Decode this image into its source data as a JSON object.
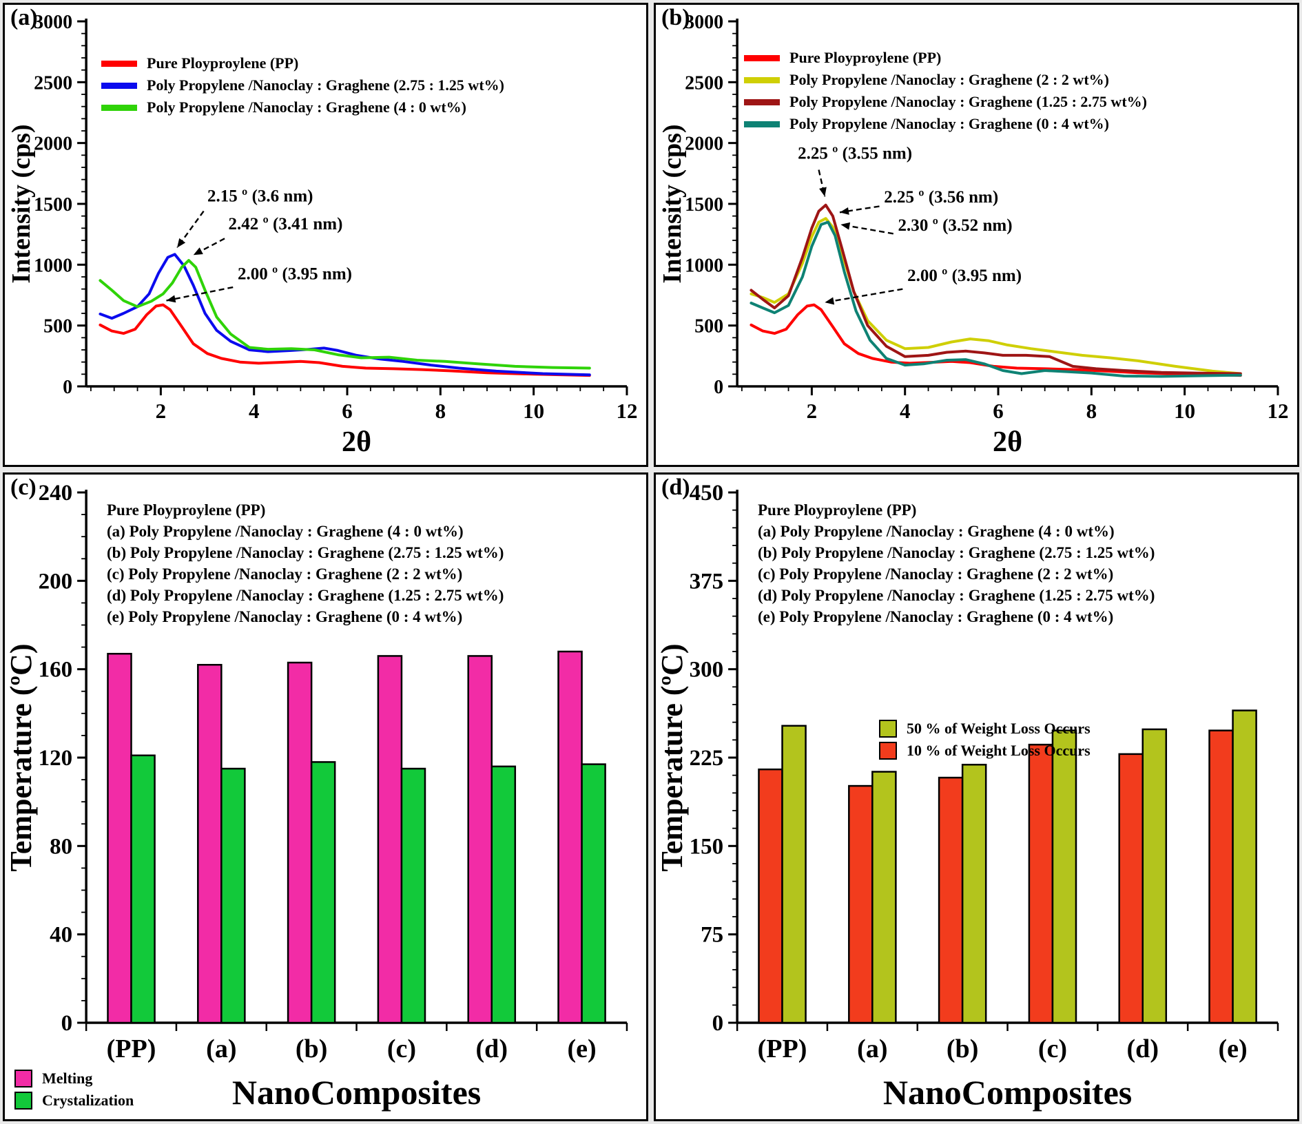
{
  "figure": {
    "panels": [
      {
        "label": "(a)"
      },
      {
        "label": "(b)"
      },
      {
        "label": "(c)"
      },
      {
        "label": "(d)"
      }
    ]
  },
  "chart_data": [
    {
      "id": "a",
      "type": "line",
      "xlabel": "2θ",
      "ylabel": "Intensity (cps)",
      "xlim": [
        0.4,
        12
      ],
      "ylim": [
        0,
        3000
      ],
      "xticks": [
        2,
        4,
        6,
        8,
        10,
        12
      ],
      "xminor_step": 0.5,
      "ytick_step": 500,
      "yminor_step": 100,
      "legend_position": "top-left-inside",
      "series": [
        {
          "name": "Pure Ployproylene (PP)",
          "color": "#ff0000",
          "x": [
            0.7,
            0.95,
            1.2,
            1.45,
            1.7,
            1.9,
            2.05,
            2.2,
            2.45,
            2.7,
            3.0,
            3.3,
            3.7,
            4.1,
            4.6,
            5.0,
            5.4,
            5.9,
            6.4,
            7.0,
            7.6,
            8.2,
            9.0,
            10.0,
            11.2
          ],
          "y": [
            505,
            455,
            435,
            470,
            590,
            660,
            670,
            630,
            490,
            350,
            270,
            230,
            200,
            190,
            198,
            205,
            195,
            165,
            150,
            145,
            138,
            128,
            112,
            100,
            90
          ]
        },
        {
          "name": "Poly Propylene /Nanoclay : Graghene (2.75 : 1.25 wt%)",
          "color": "#0b0bee",
          "x": [
            0.7,
            0.95,
            1.2,
            1.5,
            1.75,
            1.95,
            2.15,
            2.3,
            2.5,
            2.7,
            2.95,
            3.2,
            3.5,
            3.9,
            4.3,
            4.8,
            5.2,
            5.5,
            5.8,
            6.2,
            6.7,
            7.2,
            7.8,
            8.4,
            9.2,
            10.2,
            11.2
          ],
          "y": [
            595,
            560,
            600,
            655,
            760,
            930,
            1060,
            1085,
            990,
            830,
            600,
            460,
            370,
            300,
            285,
            295,
            305,
            315,
            295,
            255,
            225,
            205,
            175,
            150,
            125,
            105,
            95
          ]
        },
        {
          "name": "Poly Propylene /Nanoclay : Graghene (4 : 0 wt%)",
          "color": "#2fd308",
          "x": [
            0.7,
            0.95,
            1.2,
            1.5,
            1.8,
            2.05,
            2.25,
            2.45,
            2.6,
            2.75,
            2.95,
            3.2,
            3.5,
            3.9,
            4.3,
            4.8,
            5.3,
            5.8,
            6.3,
            6.9,
            7.5,
            8.1,
            8.8,
            9.6,
            10.4,
            11.2
          ],
          "y": [
            870,
            790,
            705,
            655,
            700,
            760,
            850,
            980,
            1035,
            980,
            790,
            570,
            430,
            320,
            305,
            310,
            300,
            260,
            235,
            240,
            215,
            205,
            185,
            165,
            155,
            150
          ]
        }
      ],
      "annotations": [
        {
          "text": "2.15 º (3.6 nm)",
          "tx": 3.0,
          "ty": 1520,
          "line": [
            2.92,
            1440,
            2.35,
            1140
          ]
        },
        {
          "text": "2.42 º (3.41 nm)",
          "tx": 3.45,
          "ty": 1290,
          "line": [
            3.37,
            1215,
            2.7,
            1080
          ]
        },
        {
          "text": "2.00 º (3.95 nm)",
          "tx": 3.65,
          "ty": 880,
          "line": [
            3.55,
            815,
            2.12,
            705
          ]
        }
      ]
    },
    {
      "id": "b",
      "type": "line",
      "xlabel": "2θ",
      "ylabel": "Intensity (cps)",
      "xlim": [
        0.4,
        12
      ],
      "ylim": [
        0,
        3000
      ],
      "xticks": [
        2,
        4,
        6,
        8,
        10,
        12
      ],
      "xminor_step": 0.5,
      "ytick_step": 500,
      "yminor_step": 100,
      "legend_position": "top-left-inside",
      "series": [
        {
          "name": "Pure Ployproylene (PP)",
          "color": "#ff0000",
          "x": [
            0.7,
            0.95,
            1.2,
            1.45,
            1.7,
            1.9,
            2.05,
            2.2,
            2.45,
            2.7,
            3.0,
            3.3,
            3.7,
            4.1,
            4.6,
            5.0,
            5.4,
            5.9,
            6.4,
            7.0,
            7.6,
            8.2,
            9.0,
            10.0,
            11.2
          ],
          "y": [
            505,
            455,
            435,
            470,
            590,
            660,
            670,
            630,
            490,
            350,
            270,
            230,
            200,
            190,
            198,
            205,
            195,
            165,
            150,
            145,
            138,
            128,
            112,
            100,
            90
          ]
        },
        {
          "name": "Poly Propylene /Nanoclay : Graghene (2 : 2 wt%)",
          "color": "#cfcf05",
          "x": [
            0.7,
            0.95,
            1.2,
            1.5,
            1.8,
            2.0,
            2.15,
            2.3,
            2.45,
            2.65,
            2.9,
            3.2,
            3.6,
            4.0,
            4.5,
            5.0,
            5.4,
            5.8,
            6.2,
            6.7,
            7.2,
            7.8,
            8.4,
            9.0,
            9.8,
            10.6,
            11.2
          ],
          "y": [
            760,
            730,
            690,
            760,
            1010,
            1230,
            1350,
            1380,
            1310,
            1090,
            780,
            540,
            380,
            310,
            320,
            365,
            390,
            375,
            340,
            310,
            285,
            255,
            235,
            210,
            165,
            125,
            105
          ]
        },
        {
          "name": "Poly Propylene /Nanoclay : Graghene (1.25 : 2.75 wt%)",
          "color": "#9e1515",
          "x": [
            0.7,
            0.95,
            1.2,
            1.5,
            1.8,
            2.0,
            2.15,
            2.3,
            2.45,
            2.65,
            2.9,
            3.2,
            3.6,
            4.0,
            4.5,
            4.9,
            5.3,
            5.7,
            6.1,
            6.6,
            7.1,
            7.6,
            8.1,
            8.7,
            9.5,
            10.4,
            11.2
          ],
          "y": [
            790,
            715,
            645,
            745,
            1060,
            1300,
            1440,
            1490,
            1400,
            1130,
            780,
            500,
            330,
            245,
            255,
            280,
            290,
            275,
            255,
            255,
            245,
            165,
            145,
            130,
            115,
            108,
            105
          ]
        },
        {
          "name": "Poly Propylene /Nanoclay : Graghene (0 : 4 wt%)",
          "color": "#0e8274",
          "x": [
            0.7,
            0.95,
            1.2,
            1.5,
            1.8,
            2.0,
            2.2,
            2.35,
            2.5,
            2.7,
            2.95,
            3.25,
            3.6,
            4.0,
            4.4,
            4.9,
            5.3,
            5.7,
            6.1,
            6.5,
            7.0,
            7.5,
            8.0,
            8.7,
            9.5,
            10.4,
            11.2
          ],
          "y": [
            685,
            645,
            605,
            665,
            900,
            1150,
            1330,
            1350,
            1240,
            940,
            620,
            380,
            230,
            175,
            185,
            215,
            220,
            185,
            130,
            105,
            130,
            120,
            110,
            85,
            82,
            88,
            92
          ]
        }
      ],
      "annotations": [
        {
          "text": "2.25 º (3.55 nm)",
          "tx": 1.7,
          "ty": 1870,
          "line": [
            2.15,
            1780,
            2.28,
            1560
          ]
        },
        {
          "text": "2.25 º (3.56 nm)",
          "tx": 3.55,
          "ty": 1510,
          "line": [
            3.45,
            1480,
            2.6,
            1430
          ]
        },
        {
          "text": "2.30 º (3.52 nm)",
          "tx": 3.85,
          "ty": 1280,
          "line": [
            3.75,
            1255,
            2.62,
            1330
          ]
        },
        {
          "text": "2.00 º (3.95 nm)",
          "tx": 4.05,
          "ty": 865,
          "line": [
            3.95,
            800,
            2.28,
            690
          ]
        }
      ]
    },
    {
      "id": "c",
      "type": "bar",
      "xlabel": "NanoComposites",
      "ylabel": "Temperature (ºC)",
      "ylim": [
        0,
        240
      ],
      "ytick_step": 40,
      "yminor_step": 10,
      "categories": [
        "(PP)",
        "(a)",
        "(b)",
        "(c)",
        "(d)",
        "(e)"
      ],
      "series": [
        {
          "name": "Melting",
          "color": "#f22ca6",
          "values": [
            167,
            162,
            163,
            166,
            166,
            168
          ]
        },
        {
          "name": "Crystalization",
          "color": "#12c93a",
          "values": [
            121,
            115,
            118,
            115,
            116,
            117
          ]
        }
      ],
      "legend": [
        {
          "label": "Melting",
          "color": "#f22ca6"
        },
        {
          "label": "Crystalization",
          "color": "#12c93a"
        }
      ],
      "note_lines": [
        "Pure Ployproylene (PP)",
        "(a) Poly Propylene /Nanoclay : Graghene (4 : 0 wt%)",
        "(b) Poly Propylene /Nanoclay : Graghene (2.75 : 1.25 wt%)",
        "(c) Poly Propylene /Nanoclay : Graghene (2 : 2 wt%)",
        "(d) Poly Propylene /Nanoclay : Graghene (1.25 : 2.75 wt%)",
        "(e) Poly Propylene /Nanoclay : Graghene (0 : 4 wt%)"
      ]
    },
    {
      "id": "d",
      "type": "bar",
      "xlabel": "NanoComposites",
      "ylabel": "Temperature (ºC)",
      "ylim": [
        0,
        450
      ],
      "ytick_step": 75,
      "yminor_step": 15,
      "categories": [
        "(PP)",
        "(a)",
        "(b)",
        "(c)",
        "(d)",
        "(e)"
      ],
      "series": [
        {
          "name": "10 % of Weight Loss Occurs",
          "color": "#f23c1d",
          "values": [
            215,
            201,
            208,
            236,
            228,
            248
          ]
        },
        {
          "name": "50 % of Weight Loss Occurs",
          "color": "#b3c41d",
          "values": [
            252,
            213,
            219,
            248,
            249,
            265
          ]
        }
      ],
      "legend": [
        {
          "label": "50 % of Weight Loss Occurs",
          "color": "#b3c41d"
        },
        {
          "label": "10 % of Weight Loss Occurs",
          "color": "#f23c1d"
        }
      ],
      "note_lines": [
        "Pure Ployproylene (PP)",
        "(a) Poly Propylene /Nanoclay : Graghene (4 : 0 wt%)",
        "(b) Poly Propylene /Nanoclay : Graghene (2.75 : 1.25 wt%)",
        "(c) Poly Propylene /Nanoclay : Graghene (2 : 2 wt%)",
        "(d) Poly Propylene /Nanoclay : Graghene (1.25 : 2.75 wt%)",
        "(e) Poly Propylene /Nanoclay : Graghene (0 : 4 wt%)"
      ]
    }
  ]
}
